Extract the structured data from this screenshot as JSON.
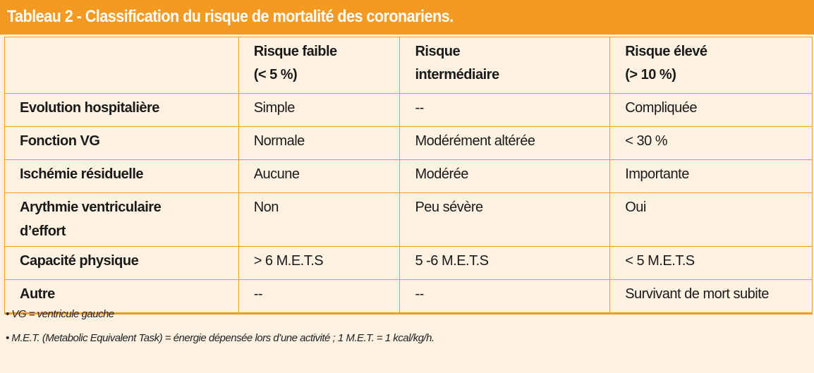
{
  "title": "Tableau 2 - Classification du risque de mortalité des coronariens.",
  "table": {
    "headers": [
      "",
      "Risque faible\n(< 5 %)",
      "Risque\nintermédiaire",
      "Risque élevé\n(> 10 %)"
    ],
    "header_lines": [
      [
        "",
        ""
      ],
      [
        "Risque faible",
        "(< 5 %)"
      ],
      [
        "Risque",
        "intermédiaire"
      ],
      [
        "Risque élevé",
        "(> 10 %)"
      ]
    ],
    "rows": [
      [
        "Evolution hospitalière",
        "Simple",
        "--",
        "Compliquée"
      ],
      [
        "Fonction VG",
        "Normale",
        "Modérément altérée",
        "< 30 %"
      ],
      [
        "Ischémie résiduelle",
        "Aucune",
        "Modérée",
        "Importante"
      ],
      [
        "Arythmie ventriculaire\nd’effort",
        "Non",
        "Peu sévère",
        "Oui"
      ],
      [
        "Capacité physique",
        "> 6 M.E.T.S",
        "5 -6 M.E.T.S",
        "< 5 M.E.T.S"
      ],
      [
        "Autre",
        "--",
        "--",
        "Survivant de mort subite"
      ]
    ],
    "row4_label_lines": [
      "Arythmie ventriculaire",
      "d’effort"
    ]
  },
  "notes": [
    "• VG = ventricule gauche",
    "• M.E.T. (Metabolic Equivalent Task) = énergie dépensée lors d’une activité ; 1 M.E.T. = 1 kcal/kg/h."
  ],
  "colors": {
    "accent": "#f29a22",
    "background": "#fdf1e1"
  }
}
